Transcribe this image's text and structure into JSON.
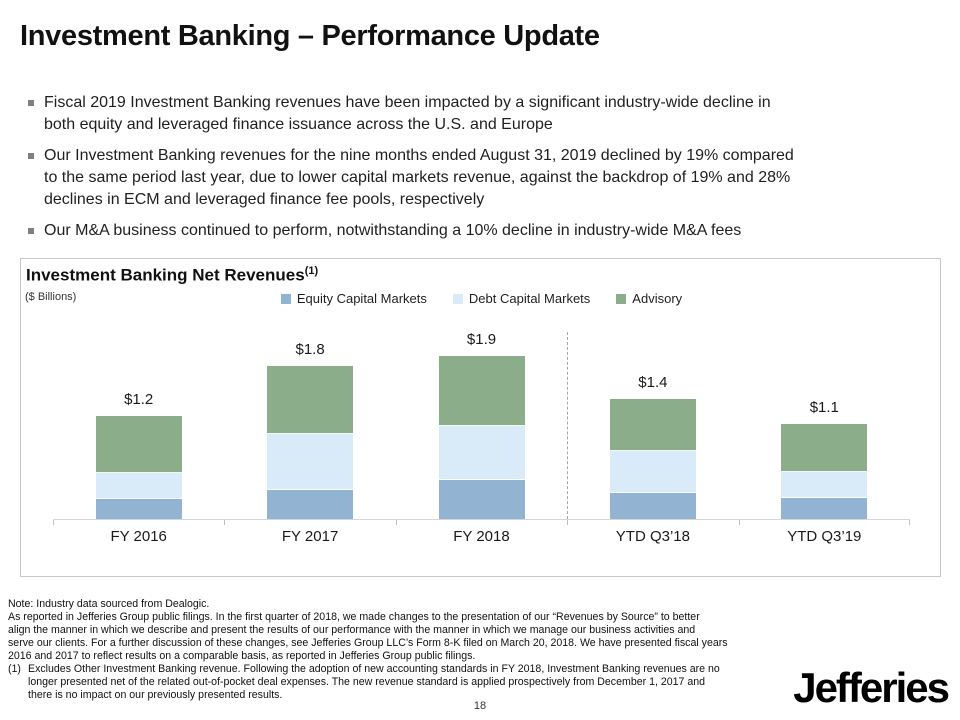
{
  "slide": {
    "title": "Investment Banking – Performance Update",
    "page_number": "18",
    "logo_text": "Jefferies"
  },
  "bullets": [
    {
      "text": "Fiscal 2019 Investment Banking revenues have been impacted by a significant industry-wide decline in\nboth equity and leveraged finance issuance across the U.S. and Europe"
    },
    {
      "text": "Our Investment Banking revenues for the nine months ended August 31, 2019 declined by 19% compared\nto the same period last year, due to lower capital markets revenue, against the backdrop of 19% and 28%\ndeclines in ECM and leveraged finance fee pools, respectively"
    },
    {
      "text": "Our M&A business continued to perform, notwithstanding a 10% decline in industry-wide M&A fees"
    }
  ],
  "chart": {
    "title": "Investment Banking Net Revenues",
    "title_sup": "(1)",
    "units": "($ Billions)"
  },
  "chart_data": {
    "type": "bar",
    "stacked": true,
    "title": "Investment Banking Net Revenues ($ Billions)",
    "categories": [
      "FY 2016",
      "FY 2017",
      "FY 2018",
      "YTD Q3’18",
      "YTD Q3’19"
    ],
    "series": [
      {
        "name": "Equity Capital Markets",
        "color": "#92B3D1",
        "values": [
          0.23,
          0.34,
          0.45,
          0.3,
          0.24
        ]
      },
      {
        "name": "Debt Capital Markets",
        "color": "#D9EAF9",
        "values": [
          0.3,
          0.65,
          0.63,
          0.49,
          0.31
        ]
      },
      {
        "name": "Advisory",
        "color": "#8CAD8A",
        "values": [
          0.67,
          0.79,
          0.81,
          0.61,
          0.56
        ]
      }
    ],
    "totals": [
      1.2,
      1.8,
      1.9,
      1.4,
      1.1
    ],
    "total_labels": [
      "$1.2",
      "$1.8",
      "$1.9",
      "$1.4",
      "$1.1"
    ],
    "ylim": [
      0,
      3.0
    ],
    "grid": false,
    "legend_position": "top",
    "separator_after_category_index": 2
  },
  "footnotes": {
    "note_line": "Note: Industry data sourced from Dealogic.",
    "reported_paragraph": "As reported in Jefferies Group public filings. In the first quarter of 2018, we made changes to the presentation of our “Revenues by Source” to better\nalign the manner in which we describe and present the results of our performance with the manner in which we manage our business activities and\nserve our clients. For a further discussion of these changes, see Jefferies Group LLC’s Form 8-K filed on March 20, 2018. We have presented fiscal years\n2016 and 2017 to reflect results on a comparable basis, as reported in Jefferies Group public filings.",
    "footnote_1_marker": "(1)",
    "footnote_1_text": "Excludes Other Investment Banking revenue. Following the adoption of new accounting standards in FY 2018, Investment Banking revenues are no\nlonger presented net of the related out-of-pocket deal expenses. The new revenue standard is applied prospectively from December 1, 2017 and\nthere is no impact on our previously presented results."
  }
}
